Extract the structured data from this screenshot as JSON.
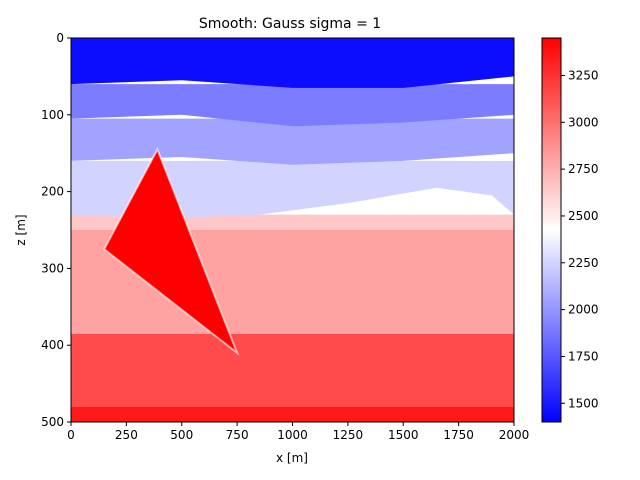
{
  "chart_data": {
    "type": "heatmap",
    "title": "Smooth: Gauss sigma = 1",
    "xlabel": "x [m]",
    "ylabel": "z [m]",
    "xlim": [
      0,
      2000
    ],
    "ylim": [
      500,
      0
    ],
    "x_ticks": [
      "0",
      "250",
      "500",
      "750",
      "1000",
      "1250",
      "1500",
      "1750",
      "2000"
    ],
    "y_ticks": [
      "0",
      "100",
      "200",
      "300",
      "400",
      "500"
    ],
    "colorbar": {
      "colormap": "bwr",
      "range": [
        1400,
        3450
      ],
      "ticks": [
        "1500",
        "1750",
        "2000",
        "2250",
        "2500",
        "2750",
        "3000",
        "3250"
      ]
    },
    "layers": [
      {
        "z_top": 0,
        "z_bottom_profile": [
          [
            0,
            60
          ],
          [
            500,
            55
          ],
          [
            1000,
            65
          ],
          [
            1500,
            65
          ],
          [
            2000,
            50
          ]
        ],
        "value": 1450
      },
      {
        "z_top": 60,
        "z_bottom_profile": [
          [
            0,
            105
          ],
          [
            500,
            100
          ],
          [
            1000,
            115
          ],
          [
            1500,
            110
          ],
          [
            2000,
            100
          ]
        ],
        "value": 1900
      },
      {
        "z_top": 105,
        "z_bottom_profile": [
          [
            0,
            160
          ],
          [
            500,
            155
          ],
          [
            1000,
            165
          ],
          [
            1500,
            160
          ],
          [
            2000,
            150
          ]
        ],
        "value": 2050
      },
      {
        "z_top": 160,
        "z_bottom_profile": [
          [
            0,
            230
          ],
          [
            400,
            235
          ],
          [
            850,
            230
          ],
          [
            1250,
            215
          ],
          [
            1650,
            195
          ],
          [
            1900,
            205
          ],
          [
            2000,
            230
          ]
        ],
        "value": 2250
      },
      {
        "z_top": 230,
        "z_bottom_profile": [
          [
            0,
            250
          ],
          [
            2000,
            250
          ]
        ],
        "value": 2650
      },
      {
        "z_top": 250,
        "z_bottom_profile": [
          [
            0,
            385
          ],
          [
            2000,
            385
          ]
        ],
        "value": 2800
      },
      {
        "z_top": 385,
        "z_bottom_profile": [
          [
            0,
            480
          ],
          [
            2000,
            480
          ]
        ],
        "value": 3150
      },
      {
        "z_top": 480,
        "z_bottom_profile": [
          [
            0,
            500
          ],
          [
            2000,
            500
          ]
        ],
        "value": 3350
      }
    ],
    "body": {
      "shape": "triangle",
      "vertices": [
        [
          390,
          145
        ],
        [
          150,
          275
        ],
        [
          750,
          410
        ]
      ],
      "value": 3450
    }
  }
}
